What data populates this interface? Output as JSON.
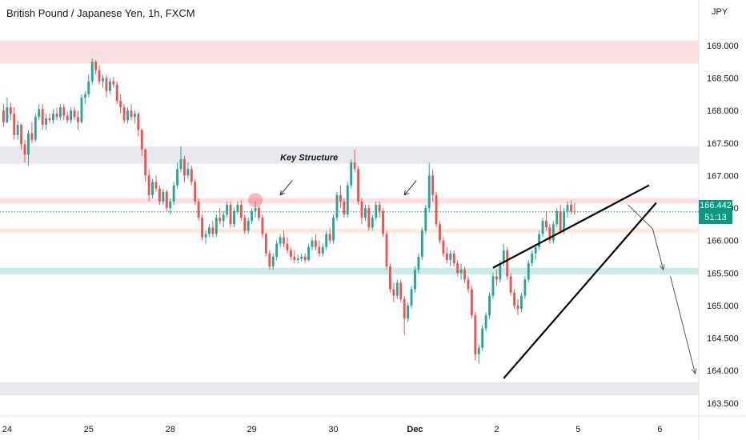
{
  "header": {
    "title": "British Pound / Japanese Yen, 1h, FXCM",
    "currency": "JPY"
  },
  "last_price": {
    "value": "166.442",
    "countdown": "51:13"
  },
  "annotation": {
    "text": "Key Structure"
  },
  "colors": {
    "up": "#26a69a",
    "down": "#ef5350",
    "resistance_zone": "#f7c6c9",
    "support_zone": "#b7e4dc",
    "neutral_zone": "#dfe1e6",
    "pivot_zone": "#fde3c8",
    "badge": "#089981",
    "pattern_line": "#000000"
  },
  "chart_data": {
    "type": "candlestick",
    "title": "British Pound / Japanese Yen, 1h, FXCM",
    "y_axis": {
      "label": "JPY",
      "range": [
        163.3,
        169.7
      ],
      "ticks": [
        "169.000",
        "168.500",
        "168.000",
        "167.500",
        "167.000",
        "166.500",
        "166.000",
        "165.500",
        "165.000",
        "164.500",
        "164.000",
        "163.500"
      ]
    },
    "x_axis": {
      "range": [
        -1,
        196
      ],
      "ticks": [
        {
          "label": "24",
          "x": 1
        },
        {
          "label": "25",
          "x": 24
        },
        {
          "label": "28",
          "x": 47
        },
        {
          "label": "29",
          "x": 70
        },
        {
          "label": "30",
          "x": 93
        },
        {
          "label": "Dec",
          "x": 116
        },
        {
          "label": "2",
          "x": 139
        },
        {
          "label": "5",
          "x": 162
        },
        {
          "label": "6",
          "x": 185
        }
      ]
    },
    "zones": [
      {
        "type": "resistance",
        "from": 168.72,
        "to": 169.08
      },
      {
        "type": "neutral",
        "from": 167.18,
        "to": 167.45
      },
      {
        "type": "resistance",
        "from": 166.57,
        "to": 166.65
      },
      {
        "type": "pivot",
        "from": 166.12,
        "to": 166.18
      },
      {
        "type": "support",
        "from": 165.48,
        "to": 165.58
      },
      {
        "type": "neutral",
        "from": 163.62,
        "to": 163.82
      }
    ],
    "current_price_line": 166.442,
    "pattern": "rising wedge",
    "wedge_lines": [
      {
        "from": [
          138,
          165.58
        ],
        "to": [
          182,
          166.85
        ]
      },
      {
        "from": [
          141,
          163.88
        ],
        "to": [
          184,
          166.58
        ]
      }
    ],
    "projection": [
      [
        176,
        166.55
      ],
      [
        183,
        166.18
      ],
      [
        186,
        165.55
      ],
      [
        188,
        165.45
      ],
      [
        195,
        163.95
      ]
    ],
    "markers": {
      "circle": [
        71,
        166.62
      ],
      "arrows": [
        [
          78,
          166.7
        ],
        [
          113,
          166.7
        ]
      ]
    },
    "key_structure_label": {
      "x": 78,
      "y": 167.28
    },
    "ohlc_series": [
      [
        0,
        168.0,
        168.1,
        167.75,
        167.82
      ],
      [
        1,
        167.82,
        168.2,
        167.8,
        168.05
      ],
      [
        2,
        168.05,
        168.12,
        167.85,
        167.95
      ],
      [
        3,
        167.95,
        168.05,
        167.55,
        167.62
      ],
      [
        4,
        167.62,
        167.85,
        167.55,
        167.78
      ],
      [
        5,
        167.78,
        167.8,
        167.4,
        167.48
      ],
      [
        6,
        167.48,
        167.55,
        167.2,
        167.32
      ],
      [
        7,
        167.32,
        167.7,
        167.15,
        167.65
      ],
      [
        8,
        167.65,
        167.82,
        167.5,
        167.55
      ],
      [
        9,
        167.55,
        167.95,
        167.52,
        167.9
      ],
      [
        10,
        167.9,
        168.1,
        167.85,
        168.02
      ],
      [
        11,
        168.02,
        168.1,
        167.7,
        167.78
      ],
      [
        12,
        167.78,
        167.95,
        167.7,
        167.88
      ],
      [
        13,
        167.88,
        167.95,
        167.8,
        167.85
      ],
      [
        14,
        167.85,
        168.02,
        167.8,
        167.95
      ],
      [
        15,
        167.95,
        168.05,
        167.85,
        167.9
      ],
      [
        16,
        167.9,
        168.1,
        167.85,
        168.05
      ],
      [
        17,
        168.05,
        168.1,
        167.85,
        167.92
      ],
      [
        18,
        167.92,
        167.98,
        167.8,
        167.85
      ],
      [
        19,
        167.85,
        168.05,
        167.8,
        168.0
      ],
      [
        20,
        168.0,
        168.05,
        167.85,
        167.9
      ],
      [
        21,
        167.9,
        168.0,
        167.7,
        167.82
      ],
      [
        22,
        167.82,
        168.25,
        167.8,
        168.2
      ],
      [
        23,
        168.2,
        168.3,
        168.1,
        168.25
      ],
      [
        24,
        168.25,
        168.55,
        168.2,
        168.45
      ],
      [
        25,
        168.45,
        168.8,
        168.4,
        168.75
      ],
      [
        26,
        168.75,
        168.78,
        168.55,
        168.62
      ],
      [
        27,
        168.62,
        168.7,
        168.4,
        168.45
      ],
      [
        28,
        168.45,
        168.55,
        168.35,
        168.5
      ],
      [
        29,
        168.5,
        168.55,
        168.2,
        168.3
      ],
      [
        30,
        168.3,
        168.5,
        168.25,
        168.45
      ],
      [
        31,
        168.45,
        168.52,
        168.35,
        168.4
      ],
      [
        32,
        168.4,
        168.45,
        168.1,
        168.15
      ],
      [
        33,
        168.15,
        168.25,
        167.95,
        168.05
      ],
      [
        34,
        168.05,
        168.1,
        167.8,
        167.85
      ],
      [
        35,
        167.85,
        168.05,
        167.8,
        168.0
      ],
      [
        36,
        168.0,
        168.1,
        167.85,
        167.9
      ],
      [
        37,
        167.9,
        168.0,
        167.8,
        167.95
      ],
      [
        38,
        167.95,
        167.98,
        167.6,
        167.7
      ],
      [
        39,
        167.7,
        167.72,
        167.3,
        167.4
      ],
      [
        40,
        167.4,
        167.42,
        166.9,
        167.0
      ],
      [
        41,
        167.0,
        167.1,
        166.6,
        166.7
      ],
      [
        42,
        166.7,
        166.95,
        166.65,
        166.9
      ],
      [
        43,
        166.9,
        167.0,
        166.75,
        166.8
      ],
      [
        44,
        166.8,
        166.85,
        166.55,
        166.6
      ],
      [
        45,
        166.6,
        166.8,
        166.55,
        166.75
      ],
      [
        46,
        166.75,
        166.78,
        166.45,
        166.5
      ],
      [
        47,
        166.5,
        166.65,
        166.4,
        166.6
      ],
      [
        48,
        166.6,
        166.9,
        166.55,
        166.85
      ],
      [
        49,
        166.85,
        167.2,
        166.8,
        167.1
      ],
      [
        50,
        167.1,
        167.45,
        167.05,
        167.25
      ],
      [
        51,
        167.25,
        167.3,
        166.9,
        167.0
      ],
      [
        52,
        167.0,
        167.2,
        166.95,
        167.1
      ],
      [
        53,
        167.1,
        167.15,
        166.85,
        166.9
      ],
      [
        54,
        166.9,
        166.95,
        166.55,
        166.6
      ],
      [
        55,
        166.6,
        166.65,
        166.3,
        166.35
      ],
      [
        56,
        166.35,
        166.4,
        166.0,
        166.05
      ],
      [
        57,
        166.05,
        166.15,
        165.95,
        166.1
      ],
      [
        58,
        166.1,
        166.25,
        166.05,
        166.2
      ],
      [
        59,
        166.2,
        166.3,
        166.05,
        166.1
      ],
      [
        60,
        166.1,
        166.4,
        166.05,
        166.35
      ],
      [
        61,
        166.35,
        166.5,
        166.25,
        166.3
      ],
      [
        62,
        166.3,
        166.45,
        166.2,
        166.4
      ],
      [
        63,
        166.4,
        166.6,
        166.35,
        166.55
      ],
      [
        64,
        166.55,
        166.6,
        166.2,
        166.25
      ],
      [
        65,
        166.25,
        166.5,
        166.2,
        166.45
      ],
      [
        66,
        166.45,
        166.6,
        166.4,
        166.55
      ],
      [
        67,
        166.55,
        166.62,
        166.3,
        166.35
      ],
      [
        68,
        166.35,
        166.4,
        166.1,
        166.15
      ],
      [
        69,
        166.15,
        166.35,
        166.1,
        166.3
      ],
      [
        70,
        166.3,
        166.5,
        166.25,
        166.45
      ],
      [
        71,
        166.45,
        166.6,
        166.35,
        166.5
      ],
      [
        72,
        166.5,
        166.52,
        166.3,
        166.35
      ],
      [
        73,
        166.35,
        166.4,
        166.05,
        166.1
      ],
      [
        74,
        166.1,
        166.12,
        165.75,
        165.8
      ],
      [
        75,
        165.8,
        165.85,
        165.55,
        165.6
      ],
      [
        76,
        165.6,
        165.8,
        165.55,
        165.75
      ],
      [
        77,
        165.75,
        166.0,
        165.7,
        165.95
      ],
      [
        78,
        165.95,
        166.1,
        165.9,
        166.05
      ],
      [
        79,
        166.05,
        166.15,
        165.9,
        165.95
      ],
      [
        80,
        165.95,
        166.05,
        165.8,
        165.85
      ],
      [
        81,
        165.85,
        165.9,
        165.7,
        165.75
      ],
      [
        82,
        165.75,
        165.85,
        165.65,
        165.7
      ],
      [
        83,
        165.7,
        165.78,
        165.65,
        165.72
      ],
      [
        84,
        165.72,
        165.8,
        165.68,
        165.75
      ],
      [
        85,
        165.75,
        165.8,
        165.65,
        165.7
      ],
      [
        86,
        165.7,
        165.95,
        165.68,
        165.9
      ],
      [
        87,
        165.9,
        166.05,
        165.85,
        166.0
      ],
      [
        88,
        166.0,
        166.1,
        165.85,
        165.9
      ],
      [
        89,
        165.9,
        166.0,
        165.75,
        165.8
      ],
      [
        90,
        165.8,
        165.95,
        165.75,
        165.9
      ],
      [
        91,
        165.9,
        166.15,
        165.85,
        166.1
      ],
      [
        92,
        166.1,
        166.2,
        165.95,
        166.0
      ],
      [
        93,
        166.0,
        166.4,
        165.95,
        166.35
      ],
      [
        94,
        166.35,
        166.75,
        166.3,
        166.7
      ],
      [
        95,
        166.7,
        166.85,
        166.5,
        166.6
      ],
      [
        96,
        166.6,
        166.65,
        166.35,
        166.4
      ],
      [
        97,
        166.4,
        166.9,
        166.35,
        166.85
      ],
      [
        98,
        166.85,
        167.25,
        166.8,
        167.2
      ],
      [
        99,
        167.2,
        167.4,
        167.05,
        167.1
      ],
      [
        100,
        167.1,
        167.15,
        166.55,
        166.6
      ],
      [
        101,
        166.6,
        166.65,
        166.25,
        166.35
      ],
      [
        102,
        166.35,
        166.55,
        166.3,
        166.5
      ],
      [
        103,
        166.5,
        166.55,
        166.15,
        166.2
      ],
      [
        104,
        166.2,
        166.4,
        166.15,
        166.35
      ],
      [
        105,
        166.35,
        166.6,
        166.3,
        166.55
      ],
      [
        106,
        166.55,
        166.6,
        166.35,
        166.45
      ],
      [
        107,
        166.45,
        166.5,
        166.05,
        166.1
      ],
      [
        108,
        166.1,
        166.15,
        165.55,
        165.6
      ],
      [
        109,
        165.6,
        165.65,
        165.2,
        165.25
      ],
      [
        110,
        165.25,
        165.35,
        165.05,
        165.15
      ],
      [
        111,
        165.15,
        165.4,
        165.1,
        165.35
      ],
      [
        112,
        165.35,
        165.4,
        165.05,
        165.1
      ],
      [
        113,
        165.1,
        165.15,
        164.55,
        164.8
      ],
      [
        114,
        164.8,
        165.05,
        164.75,
        165.0
      ],
      [
        115,
        165.0,
        165.3,
        164.95,
        165.25
      ],
      [
        116,
        165.25,
        165.6,
        165.2,
        165.55
      ],
      [
        117,
        165.55,
        165.8,
        165.5,
        165.75
      ],
      [
        118,
        165.75,
        166.2,
        165.7,
        166.15
      ],
      [
        119,
        166.15,
        166.55,
        166.1,
        166.5
      ],
      [
        120,
        166.5,
        167.2,
        166.45,
        167.0
      ],
      [
        121,
        167.0,
        167.1,
        166.6,
        166.7
      ],
      [
        122,
        166.7,
        166.75,
        166.2,
        166.25
      ],
      [
        123,
        166.25,
        166.3,
        165.95,
        166.0
      ],
      [
        124,
        166.0,
        166.05,
        165.75,
        165.8
      ],
      [
        125,
        165.8,
        165.9,
        165.65,
        165.7
      ],
      [
        126,
        165.7,
        165.85,
        165.6,
        165.8
      ],
      [
        127,
        165.8,
        165.85,
        165.6,
        165.65
      ],
      [
        128,
        165.65,
        165.7,
        165.45,
        165.5
      ],
      [
        129,
        165.5,
        165.65,
        165.4,
        165.55
      ],
      [
        130,
        165.55,
        165.6,
        165.35,
        165.4
      ],
      [
        131,
        165.4,
        165.45,
        165.2,
        165.25
      ],
      [
        132,
        165.25,
        165.3,
        164.8,
        164.85
      ],
      [
        133,
        164.85,
        164.9,
        164.15,
        164.25
      ],
      [
        134,
        164.25,
        164.4,
        164.1,
        164.35
      ],
      [
        135,
        164.35,
        164.7,
        164.3,
        164.65
      ],
      [
        136,
        164.65,
        164.9,
        164.6,
        164.85
      ],
      [
        137,
        164.85,
        165.2,
        164.8,
        165.15
      ],
      [
        138,
        165.15,
        165.5,
        165.1,
        165.45
      ],
      [
        139,
        165.45,
        165.55,
        165.3,
        165.4
      ],
      [
        140,
        165.4,
        165.7,
        165.35,
        165.65
      ],
      [
        141,
        165.65,
        165.95,
        165.6,
        165.85
      ],
      [
        142,
        165.85,
        165.9,
        165.4,
        165.45
      ],
      [
        143,
        165.45,
        165.5,
        165.15,
        165.2
      ],
      [
        144,
        165.2,
        165.25,
        164.95,
        165.0
      ],
      [
        145,
        165.0,
        165.1,
        164.85,
        164.95
      ],
      [
        146,
        164.95,
        165.2,
        164.9,
        165.15
      ],
      [
        147,
        165.15,
        165.45,
        165.1,
        165.4
      ],
      [
        148,
        165.4,
        165.7,
        165.35,
        165.65
      ],
      [
        149,
        165.65,
        165.85,
        165.6,
        165.8
      ],
      [
        150,
        165.8,
        165.95,
        165.7,
        165.9
      ],
      [
        151,
        165.9,
        166.15,
        165.85,
        166.1
      ],
      [
        152,
        166.1,
        166.35,
        166.05,
        166.3
      ],
      [
        153,
        166.3,
        166.45,
        166.15,
        166.2
      ],
      [
        154,
        166.2,
        166.25,
        165.95,
        166.0
      ],
      [
        155,
        166.0,
        166.3,
        165.95,
        166.25
      ],
      [
        156,
        166.25,
        166.5,
        166.2,
        166.45
      ],
      [
        157,
        166.45,
        166.55,
        166.1,
        166.15
      ],
      [
        158,
        166.15,
        166.5,
        166.1,
        166.45
      ],
      [
        159,
        166.45,
        166.6,
        166.35,
        166.55
      ],
      [
        160,
        166.55,
        166.62,
        166.4,
        166.45
      ],
      [
        161,
        166.45,
        166.58,
        166.4,
        166.44
      ]
    ]
  }
}
